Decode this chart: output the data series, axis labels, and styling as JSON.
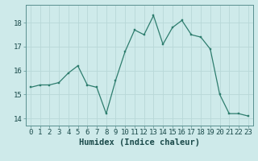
{
  "x": [
    0,
    1,
    2,
    3,
    4,
    5,
    6,
    7,
    8,
    9,
    10,
    11,
    12,
    13,
    14,
    15,
    16,
    17,
    18,
    19,
    20,
    21,
    22,
    23
  ],
  "y": [
    15.3,
    15.4,
    15.4,
    15.5,
    15.9,
    16.2,
    15.4,
    15.3,
    14.2,
    15.6,
    16.8,
    17.7,
    17.5,
    18.3,
    17.1,
    17.8,
    18.1,
    17.5,
    17.4,
    16.9,
    15.0,
    14.2,
    14.2,
    14.1
  ],
  "bg_color": "#ceeaea",
  "grid_color_major": "#b8d8d8",
  "grid_color_minor": "#d4ebeb",
  "line_color": "#2e7d6e",
  "marker_color": "#2e7d6e",
  "xlabel": "Humidex (Indice chaleur)",
  "xlabel_fontsize": 7.5,
  "tick_fontsize": 6.5,
  "ylim": [
    13.7,
    18.75
  ],
  "xlim": [
    -0.5,
    23.5
  ],
  "yticks": [
    14,
    15,
    16,
    17,
    18
  ],
  "xticks": [
    0,
    1,
    2,
    3,
    4,
    5,
    6,
    7,
    8,
    9,
    10,
    11,
    12,
    13,
    14,
    15,
    16,
    17,
    18,
    19,
    20,
    21,
    22,
    23
  ],
  "spine_color": "#5a9090",
  "tick_color": "#3a6a6a",
  "label_color": "#1a4a4a"
}
